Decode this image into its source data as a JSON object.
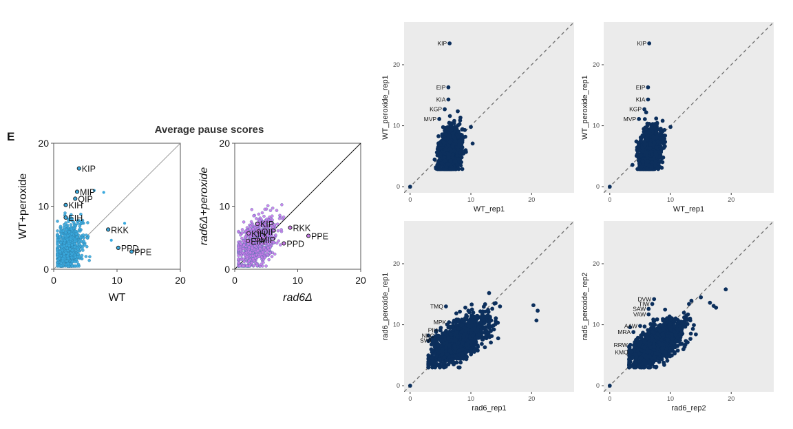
{
  "panel_letter": "E",
  "figure_title": "Average pause scores",
  "colors": {
    "wt_points": "#3aa9dd",
    "rad6_points": "#c77ae8",
    "navy_points": "#0c2f5c",
    "ggplot_bg": "#ebebeb"
  },
  "chart_data": [
    {
      "type": "scatter",
      "style": "scatter-small",
      "title": "",
      "xlabel": "WT",
      "xlabel_italic": false,
      "ylabel": "WT+peroxide",
      "ylabel_italic": false,
      "xlim": [
        0,
        20
      ],
      "ylim": [
        0,
        20
      ],
      "xticks": [
        "0",
        "10",
        "20"
      ],
      "yticks": [
        "0",
        "10",
        "20"
      ],
      "diagonal": true,
      "point_color": "#3aa9dd",
      "cloud": {
        "n": 700,
        "x_center": 2.4,
        "x_sd": 1.1,
        "y_center": 3.6,
        "y_sd": 1.9,
        "x_max": 8.6,
        "y_max": 12.4
      },
      "labeled_points": [
        {
          "label": "KIP",
          "x": 4.0,
          "y": 16.0
        },
        {
          "label": "MIP",
          "x": 3.7,
          "y": 12.3
        },
        {
          "label": "QIP",
          "x": 3.4,
          "y": 11.2
        },
        {
          "label": "KIH",
          "x": 1.9,
          "y": 10.2
        },
        {
          "label": "EIH",
          "x": 1.9,
          "y": 8.2
        },
        {
          "label": "RKK",
          "x": 8.6,
          "y": 6.3
        },
        {
          "label": "PPD",
          "x": 10.2,
          "y": 3.4
        },
        {
          "label": "PPE",
          "x": 12.3,
          "y": 2.8
        }
      ],
      "extra_points": [
        {
          "x": 11.2,
          "y": 7.3
        },
        {
          "x": 6.4,
          "y": 12.5
        },
        {
          "x": 7.9,
          "y": 12.2
        },
        {
          "x": 9.1,
          "y": 4.6
        }
      ]
    },
    {
      "type": "scatter",
      "style": "scatter-small",
      "title": "",
      "xlabel": "rad6Δ",
      "xlabel_italic": true,
      "ylabel": "rad6Δ+peroxide",
      "ylabel_italic": true,
      "xlim": [
        0,
        20
      ],
      "ylim": [
        0,
        20
      ],
      "xticks": [
        "0",
        "10",
        "20"
      ],
      "yticks": [
        "0",
        "10",
        "20"
      ],
      "diagonal": true,
      "point_color": "#c77ae8",
      "cloud": {
        "n": 800,
        "x_center": 3.4,
        "x_sd": 1.5,
        "y_center": 4.2,
        "y_sd": 1.8,
        "x_max": 9.0,
        "y_max": 10.5
      },
      "labeled_points": [
        {
          "label": "KIP",
          "x": 3.6,
          "y": 7.2
        },
        {
          "label": "RKK",
          "x": 8.8,
          "y": 6.6
        },
        {
          "label": "QIP",
          "x": 3.8,
          "y": 6.0
        },
        {
          "label": "KIH",
          "x": 2.2,
          "y": 5.7
        },
        {
          "label": "MIP",
          "x": 3.6,
          "y": 4.7
        },
        {
          "label": "EIH",
          "x": 2.1,
          "y": 4.5
        },
        {
          "label": "PPE",
          "x": 11.7,
          "y": 5.3
        },
        {
          "label": "PPD",
          "x": 7.8,
          "y": 4.1
        }
      ],
      "extra_points": []
    },
    {
      "type": "scatter",
      "style": "ggplot",
      "title": "",
      "xlabel": "WT_rep1",
      "ylabel": "WT_peroxide_rep1",
      "xlim": [
        -1,
        27
      ],
      "ylim": [
        -1,
        27
      ],
      "xticks": [
        0,
        10,
        20
      ],
      "yticks": [
        0,
        10,
        20
      ],
      "diagonal": true,
      "point_color": "#0c2f5c",
      "cloud": {
        "n": 1100,
        "x_center": 6.6,
        "x_sd": 0.9,
        "y_center": 5.8,
        "y_sd": 1.8,
        "x_min": 3.6,
        "x_max": 10.8,
        "y_min": 2.9,
        "y_max": 17.6
      },
      "labeled_points": [
        {
          "label": "KIP",
          "x": 6.5,
          "y": 23.5
        },
        {
          "label": "EIP",
          "x": 6.3,
          "y": 16.3
        },
        {
          "label": "KIA",
          "x": 6.3,
          "y": 14.3
        },
        {
          "label": "KGP",
          "x": 5.7,
          "y": 12.7
        },
        {
          "label": "MVP",
          "x": 4.8,
          "y": 11.1
        }
      ],
      "extra_points": [
        {
          "x": 0,
          "y": 0
        },
        {
          "x": 10.0,
          "y": 9.8
        },
        {
          "x": 9.0,
          "y": 9.3
        }
      ]
    },
    {
      "type": "scatter",
      "style": "ggplot",
      "title": "",
      "xlabel": "WT_rep1",
      "ylabel": "WT_peroxide_rep1",
      "xlim": [
        -1,
        27
      ],
      "ylim": [
        -1,
        27
      ],
      "xticks": [
        0,
        10,
        20
      ],
      "yticks": [
        0,
        10,
        20
      ],
      "diagonal": true,
      "point_color": "#0c2f5c",
      "cloud": {
        "n": 1100,
        "x_center": 6.6,
        "x_sd": 0.9,
        "y_center": 5.8,
        "y_sd": 1.8,
        "x_min": 3.6,
        "x_max": 10.8,
        "y_min": 2.9,
        "y_max": 17.6
      },
      "labeled_points": [
        {
          "label": "KIP",
          "x": 6.5,
          "y": 23.5
        },
        {
          "label": "EIP",
          "x": 6.3,
          "y": 16.3
        },
        {
          "label": "KIA",
          "x": 6.3,
          "y": 14.3
        },
        {
          "label": "KGP",
          "x": 5.7,
          "y": 12.7
        },
        {
          "label": "MVP",
          "x": 4.8,
          "y": 11.1
        }
      ],
      "extra_points": [
        {
          "x": 0,
          "y": 0
        },
        {
          "x": 10.0,
          "y": 9.8
        },
        {
          "x": 9.0,
          "y": 9.3
        }
      ]
    },
    {
      "type": "scatter",
      "style": "ggplot",
      "title": "",
      "xlabel": "rad6_rep1",
      "ylabel": "rad6_peroxide_rep1",
      "xlim": [
        -1,
        27
      ],
      "ylim": [
        -1,
        27
      ],
      "xticks": [
        0,
        10,
        20
      ],
      "yticks": [
        0,
        10,
        20
      ],
      "diagonal": true,
      "point_color": "#0c2f5c",
      "cloud": {
        "n": 1400,
        "x_center": 8.0,
        "x_sd": 2.2,
        "y_center": 7.4,
        "y_sd": 1.5,
        "x_min": 3.0,
        "x_max": 18.0,
        "y_min": 3.0,
        "y_max": 15.0
      },
      "labeled_points": [
        {
          "label": "TMQ",
          "x": 5.9,
          "y": 13.0
        },
        {
          "label": "MPK",
          "x": 6.4,
          "y": 10.4
        },
        {
          "label": "PIH",
          "x": 5.0,
          "y": 9.1
        },
        {
          "label": "NKC",
          "x": 4.4,
          "y": 8.2
        },
        {
          "label": "SWI",
          "x": 3.9,
          "y": 7.4
        }
      ],
      "extra_points": [
        {
          "x": 0,
          "y": 0
        },
        {
          "x": 20.3,
          "y": 13.2
        },
        {
          "x": 21.0,
          "y": 12.3
        },
        {
          "x": 20.8,
          "y": 10.7
        },
        {
          "x": 14.8,
          "y": 13.0
        },
        {
          "x": 13.0,
          "y": 15.2
        }
      ]
    },
    {
      "type": "scatter",
      "style": "ggplot",
      "title": "",
      "xlabel": "rad6_rep2",
      "ylabel": "rad6_peroxide_rep2",
      "xlim": [
        -1,
        27
      ],
      "ylim": [
        -1,
        27
      ],
      "xticks": [
        0,
        10,
        20
      ],
      "yticks": [
        0,
        10,
        20
      ],
      "diagonal": true,
      "point_color": "#0c2f5c",
      "cloud": {
        "n": 1400,
        "x_center": 7.8,
        "x_sd": 2.0,
        "y_center": 7.0,
        "y_sd": 1.4,
        "x_min": 3.2,
        "x_max": 16.0,
        "y_min": 3.0,
        "y_max": 14.2
      },
      "labeled_points": [
        {
          "label": "DVW",
          "x": 7.3,
          "y": 14.2
        },
        {
          "label": "TIW",
          "x": 7.0,
          "y": 13.4
        },
        {
          "label": "SAW",
          "x": 6.4,
          "y": 12.6
        },
        {
          "label": "VAW",
          "x": 6.4,
          "y": 11.7
        },
        {
          "label": "AAW",
          "x": 5.0,
          "y": 9.8
        },
        {
          "label": "MRA",
          "x": 3.9,
          "y": 8.8
        },
        {
          "label": "RRW",
          "x": 3.4,
          "y": 6.7
        },
        {
          "label": "KMQ",
          "x": 3.5,
          "y": 5.5
        }
      ],
      "extra_points": [
        {
          "x": 0,
          "y": 0
        },
        {
          "x": 19.1,
          "y": 15.8
        },
        {
          "x": 17.1,
          "y": 13.1
        },
        {
          "x": 16.5,
          "y": 13.6
        },
        {
          "x": 15.0,
          "y": 14.5
        },
        {
          "x": 17.5,
          "y": 12.8
        }
      ]
    }
  ]
}
